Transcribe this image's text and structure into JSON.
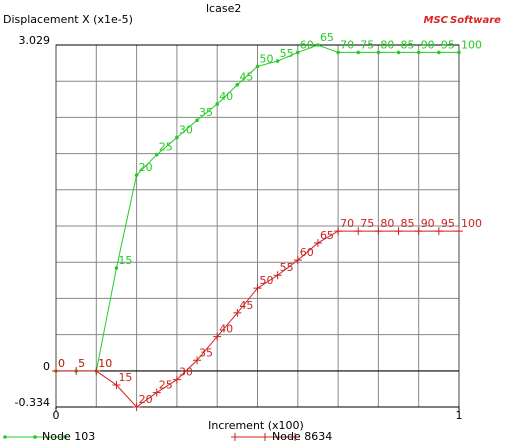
{
  "chart_data": {
    "type": "line",
    "title": "lcase2",
    "logo": [
      "MSC",
      "Software"
    ],
    "y_label": "Displacement X (x1e-5)",
    "x_label": "Increment (x100)",
    "x": [
      0,
      0.05,
      0.1,
      0.15,
      0.2,
      0.25,
      0.3,
      0.35,
      0.4,
      0.45,
      0.5,
      0.55,
      0.6,
      0.65,
      0.7,
      0.75,
      0.8,
      0.85,
      0.9,
      0.95,
      1
    ],
    "point_labels": [
      "0",
      "5",
      "10",
      "15",
      "20",
      "25",
      "30",
      "35",
      "40",
      "45",
      "50",
      "55",
      "60",
      "65",
      "70",
      "75",
      "80",
      "85",
      "90",
      "95",
      "100"
    ],
    "series": [
      {
        "name": "Node 103",
        "color": "#22cc22",
        "marker": "dot",
        "values": [
          0,
          0,
          0,
          0.957,
          1.82,
          2.01,
          2.17,
          2.33,
          2.48,
          2.66,
          2.83,
          2.88,
          2.96,
          3.029,
          2.96,
          2.96,
          2.96,
          2.96,
          2.96,
          2.96,
          2.96
        ]
      },
      {
        "name": "Node 8634",
        "color": "#cc2222",
        "marker": "plus",
        "values": [
          0,
          0,
          0,
          -0.13,
          -0.334,
          -0.2,
          -0.08,
          0.1,
          0.32,
          0.54,
          0.77,
          0.89,
          1.03,
          1.19,
          1.3,
          1.3,
          1.3,
          1.3,
          1.3,
          1.3,
          1.3
        ]
      }
    ],
    "xlim": [
      0,
      1
    ],
    "xticks": [
      0,
      1
    ],
    "ylim": [
      -0.334,
      3.029
    ],
    "yticks": [
      -0.334,
      0,
      3.029
    ],
    "grid": true
  }
}
